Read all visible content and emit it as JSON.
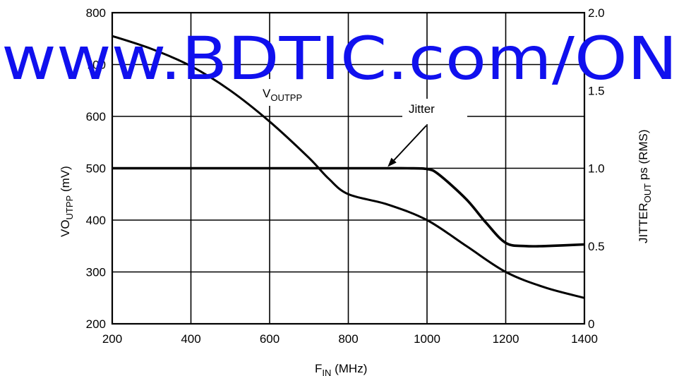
{
  "chart_data": {
    "type": "line",
    "x_axis": {
      "label_main": "F",
      "label_sub": "IN",
      "label_tail": " (MHz)",
      "ticks": [
        200,
        400,
        600,
        800,
        1000,
        1200,
        1400
      ],
      "range": [
        200,
        1400
      ]
    },
    "y_axis_left": {
      "label_main": "VO",
      "label_sub": "UTPP",
      "label_tail": " (mV)",
      "ticks": [
        200,
        300,
        400,
        500,
        600,
        700,
        800
      ],
      "range": [
        200,
        800
      ]
    },
    "y_axis_right": {
      "label_main": "JITTER",
      "label_sub": "OUT",
      "label_tail": " ps (RMS)",
      "ticks": [
        "0",
        "0.5",
        "1.0",
        "1.5",
        "2.0"
      ],
      "tick_values": [
        0,
        0.5,
        1.0,
        1.5,
        2.0
      ],
      "range": [
        0,
        2.0
      ]
    },
    "grid": true,
    "series": [
      {
        "name": "V",
        "name_sub": "OUTPP",
        "axis": "left",
        "x": [
          200,
          300,
          400,
          500,
          600,
          700,
          750,
          800,
          900,
          1000,
          1100,
          1200,
          1300,
          1400
        ],
        "y": [
          755,
          730,
          697,
          650,
          590,
          520,
          480,
          450,
          430,
          400,
          350,
          300,
          270,
          250
        ]
      },
      {
        "name": "Jitter",
        "axis": "right",
        "x": [
          200,
          400,
          600,
          800,
          900,
          950,
          1000,
          1030,
          1100,
          1150,
          1200,
          1250,
          1300,
          1400
        ],
        "y": [
          1.0,
          1.0,
          1.0,
          1.0,
          1.0,
          1.0,
          0.995,
          0.96,
          0.8,
          0.65,
          0.52,
          0.5,
          0.5,
          0.51
        ]
      }
    ],
    "annotation_arrow_target": {
      "x": 900,
      "y_right": 1.0
    }
  },
  "watermark": "www.BDTIC.com/ON"
}
